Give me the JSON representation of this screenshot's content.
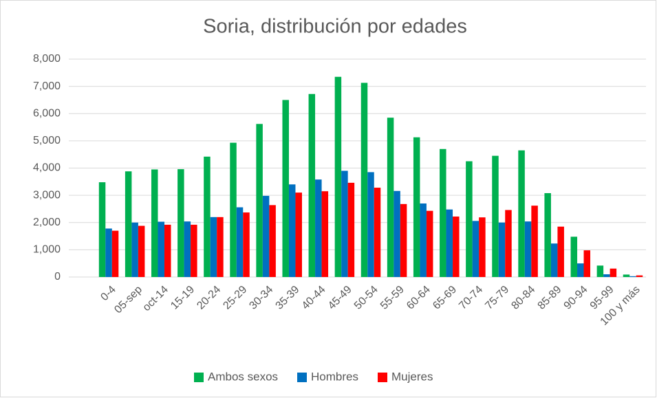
{
  "chart_data": {
    "type": "bar",
    "title": "Soria, distribución por edades",
    "categories": [
      "0-4",
      "05-sep",
      "oct-14",
      "15-19",
      "20-24",
      "25-29",
      "30-34",
      "35-39",
      "40-44",
      "45-49",
      "50-54",
      "55-59",
      "60-64",
      "65-69",
      "70-74",
      "75-79",
      "80-84",
      "85-89",
      "90-94",
      "95-99",
      "100 y más"
    ],
    "series": [
      {
        "name": "Ambos sexos",
        "color": "#00b050",
        "values": [
          3480,
          3880,
          3950,
          3960,
          4420,
          4930,
          5620,
          6500,
          6720,
          7350,
          7130,
          5850,
          5130,
          4700,
          4250,
          4450,
          4650,
          3080,
          1480,
          420,
          90
        ]
      },
      {
        "name": "Hombres",
        "color": "#0070c0",
        "values": [
          1780,
          2000,
          2030,
          2040,
          2200,
          2560,
          2980,
          3400,
          3580,
          3900,
          3850,
          3160,
          2700,
          2480,
          2060,
          2000,
          2040,
          1230,
          500,
          100,
          30
        ]
      },
      {
        "name": "Mujeres",
        "color": "#ff0000",
        "values": [
          1700,
          1880,
          1920,
          1920,
          2200,
          2370,
          2640,
          3100,
          3150,
          3460,
          3280,
          2680,
          2430,
          2220,
          2190,
          2460,
          2620,
          1850,
          980,
          310,
          60
        ]
      }
    ],
    "ylim": [
      0,
      8000
    ],
    "yticks": [
      0,
      {
        "value": 1000,
        "label": "1,000"
      },
      {
        "value": 2000,
        "label": "2,000"
      },
      {
        "value": 3000,
        "label": "3,000"
      },
      {
        "value": 4000,
        "label": "4,000"
      },
      {
        "value": 5000,
        "label": "5,000"
      },
      {
        "value": 6000,
        "label": "6,000"
      },
      {
        "value": 7000,
        "label": "7,000"
      },
      {
        "value": 8000,
        "label": "8,000"
      }
    ],
    "grid": true,
    "legend": "bottom"
  }
}
